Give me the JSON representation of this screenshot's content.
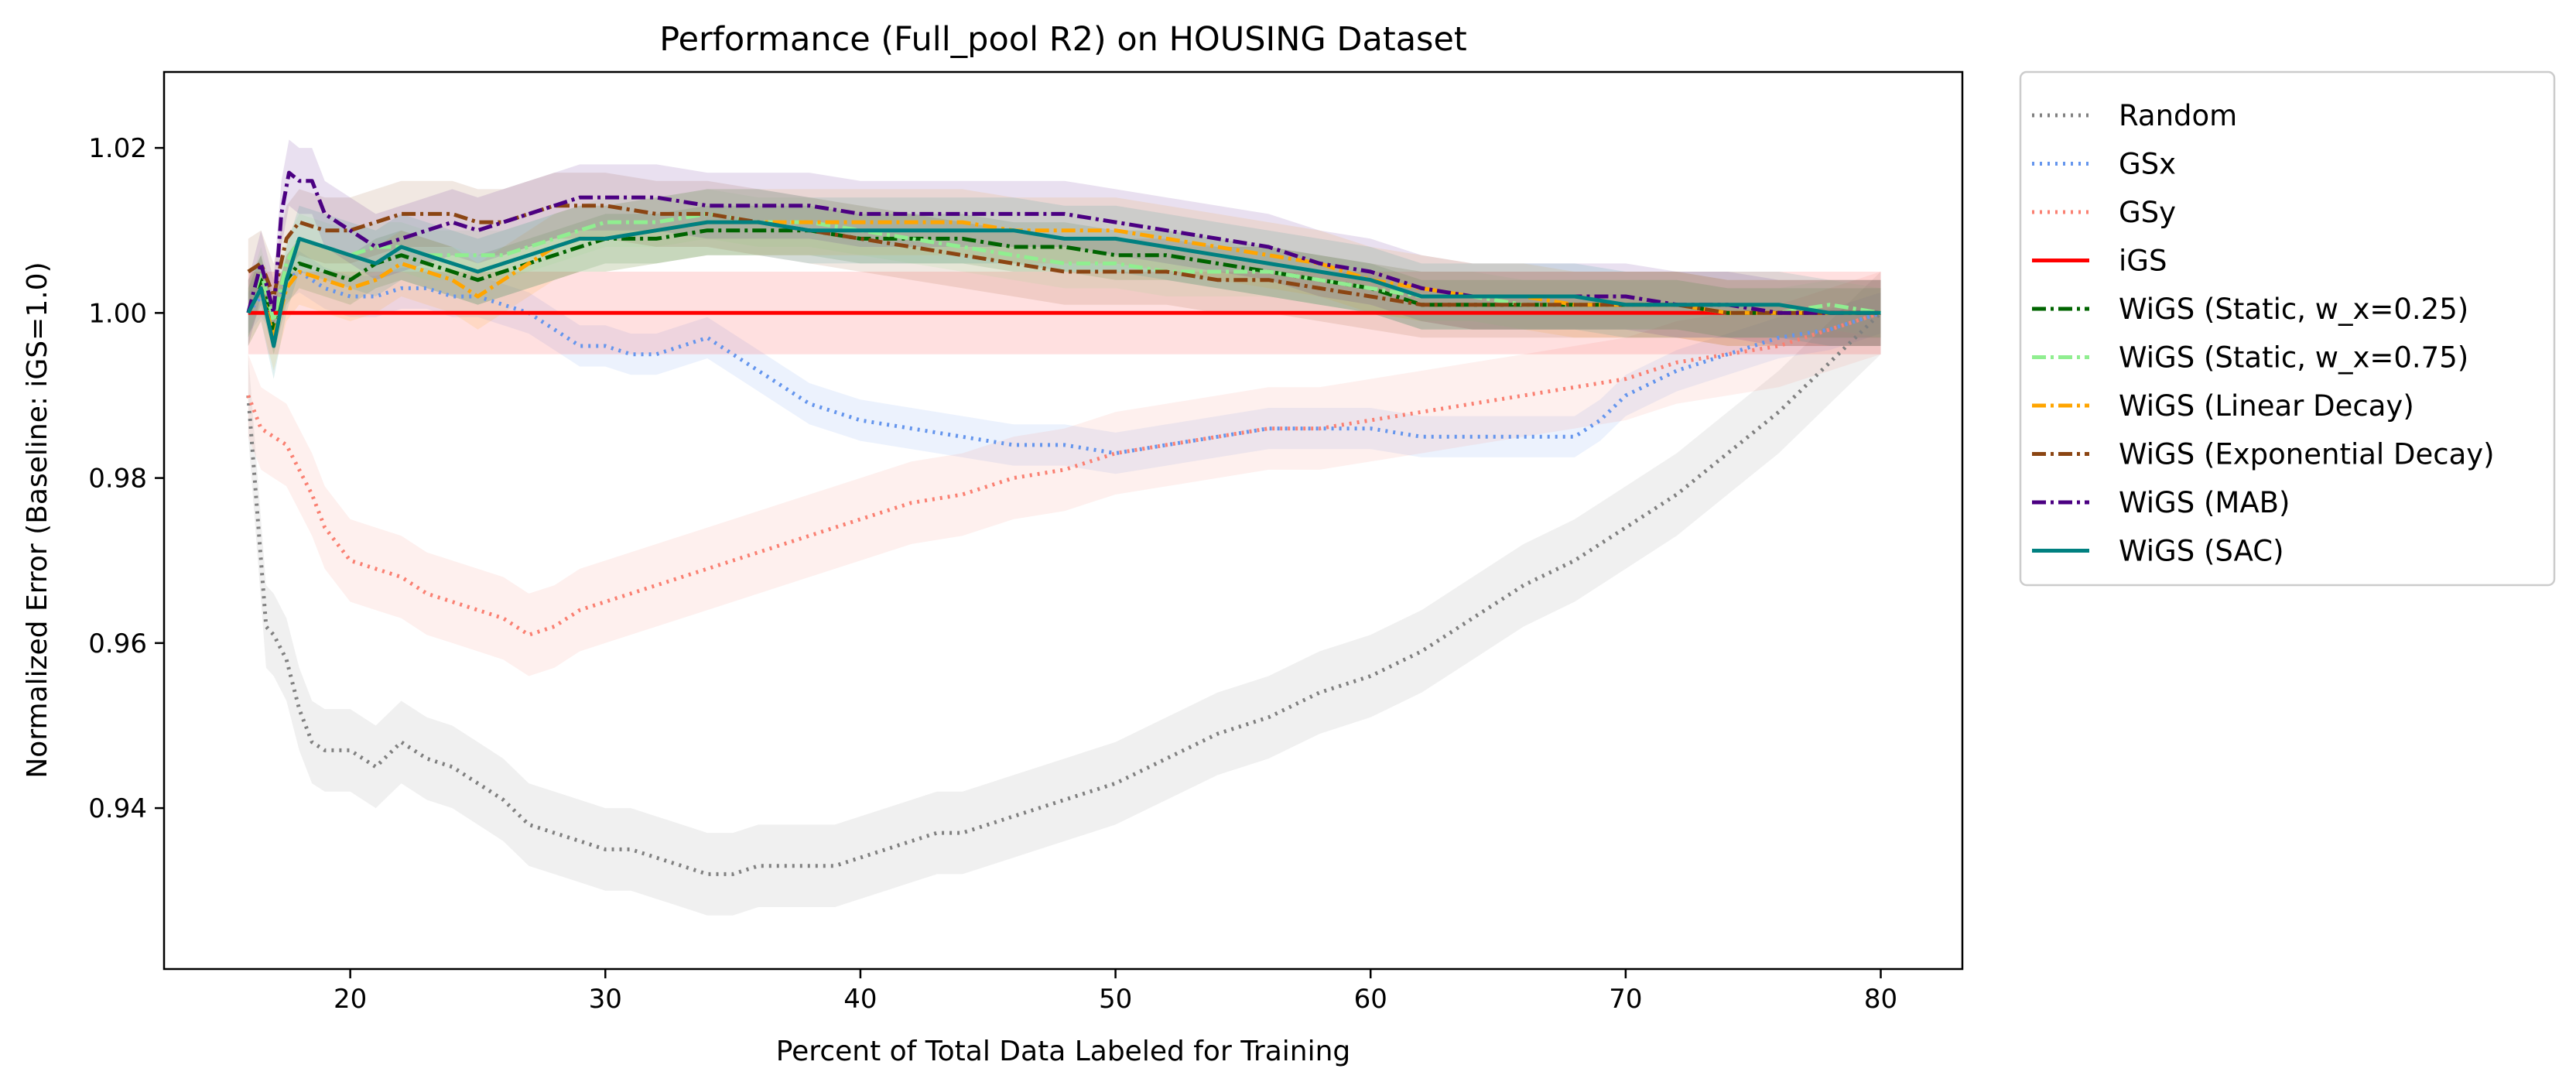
{
  "chart_data": {
    "type": "line",
    "title": "Performance (Full_pool R2) on HOUSING Dataset",
    "xlabel": "Percent of Total Data Labeled for Training",
    "ylabel": "Normalized Error (Baseline: iGS=1.0)",
    "xlim": [
      12.7,
      83.2
    ],
    "ylim": [
      0.9205,
      1.0292
    ],
    "xticks": [
      20,
      30,
      40,
      50,
      60,
      70,
      80
    ],
    "yticks": [
      0.94,
      0.96,
      0.98,
      1.0,
      1.02
    ],
    "ytick_labels": [
      "0.94",
      "0.96",
      "0.98",
      "1.00",
      "1.02"
    ],
    "grid": false,
    "legend_position": "outside-right",
    "series": [
      {
        "name": "Random",
        "color": "#808080",
        "style": "dotted",
        "band": 0.005,
        "x": [
          16,
          16.3,
          16.7,
          17,
          17.5,
          18,
          18.5,
          19,
          20,
          21,
          22,
          23,
          24,
          25,
          26,
          27,
          28,
          29,
          30,
          31,
          32,
          33,
          34,
          35,
          36,
          37,
          38,
          39,
          40,
          41,
          42,
          43,
          44,
          45,
          46,
          47,
          48,
          49,
          50,
          52,
          54,
          56,
          58,
          60,
          62,
          64,
          66,
          68,
          70,
          72,
          74,
          76,
          78,
          80
        ],
        "y": [
          0.99,
          0.978,
          0.962,
          0.961,
          0.958,
          0.952,
          0.948,
          0.947,
          0.947,
          0.945,
          0.948,
          0.946,
          0.945,
          0.943,
          0.941,
          0.938,
          0.937,
          0.936,
          0.935,
          0.935,
          0.934,
          0.933,
          0.932,
          0.932,
          0.933,
          0.933,
          0.933,
          0.933,
          0.934,
          0.935,
          0.936,
          0.937,
          0.937,
          0.938,
          0.939,
          0.94,
          0.941,
          0.942,
          0.943,
          0.946,
          0.949,
          0.951,
          0.954,
          0.956,
          0.959,
          0.963,
          0.967,
          0.97,
          0.974,
          0.978,
          0.983,
          0.988,
          0.994,
          1.0
        ]
      },
      {
        "name": "GSx",
        "color": "#6495ED",
        "style": "dotted",
        "band": 0.0025,
        "x": [
          16,
          16.5,
          17,
          17.5,
          18,
          19,
          20,
          21,
          22,
          23,
          24,
          25,
          26,
          27,
          28,
          29,
          30,
          31,
          32,
          33,
          34,
          35,
          36,
          37,
          38,
          39,
          40,
          42,
          44,
          46,
          48,
          50,
          52,
          54,
          56,
          58,
          60,
          62,
          64,
          66,
          68,
          69,
          70,
          72,
          74,
          76,
          78,
          80
        ],
        "y": [
          1.0,
          1.002,
          1.0,
          1.004,
          1.005,
          1.003,
          1.002,
          1.002,
          1.003,
          1.003,
          1.002,
          1.002,
          1.001,
          1.0,
          0.998,
          0.996,
          0.996,
          0.995,
          0.995,
          0.996,
          0.997,
          0.995,
          0.993,
          0.991,
          0.989,
          0.988,
          0.987,
          0.986,
          0.985,
          0.984,
          0.984,
          0.983,
          0.984,
          0.985,
          0.986,
          0.986,
          0.986,
          0.985,
          0.985,
          0.985,
          0.985,
          0.987,
          0.99,
          0.993,
          0.995,
          0.997,
          0.998,
          1.0
        ]
      },
      {
        "name": "GSy",
        "color": "#FA8072",
        "style": "dotted",
        "band": 0.005,
        "x": [
          16,
          16.5,
          17,
          17.5,
          18,
          18.5,
          19,
          20,
          21,
          22,
          23,
          24,
          25,
          26,
          27,
          28,
          29,
          30,
          32,
          34,
          36,
          38,
          40,
          42,
          44,
          46,
          48,
          50,
          52,
          54,
          56,
          58,
          60,
          62,
          64,
          66,
          68,
          70,
          72,
          74,
          76,
          78,
          80
        ],
        "y": [
          0.99,
          0.986,
          0.985,
          0.984,
          0.981,
          0.978,
          0.974,
          0.97,
          0.969,
          0.968,
          0.966,
          0.965,
          0.964,
          0.963,
          0.961,
          0.962,
          0.964,
          0.965,
          0.967,
          0.969,
          0.971,
          0.973,
          0.975,
          0.977,
          0.978,
          0.98,
          0.981,
          0.983,
          0.984,
          0.985,
          0.986,
          0.986,
          0.987,
          0.988,
          0.989,
          0.99,
          0.991,
          0.992,
          0.994,
          0.995,
          0.996,
          0.998,
          1.0
        ]
      },
      {
        "name": "iGS",
        "color": "#FF0000",
        "style": "solid",
        "band": 0.005,
        "x": [
          16,
          80
        ],
        "y": [
          1.0,
          1.0
        ]
      },
      {
        "name": "WiGS (Static, w_x=0.25)",
        "color": "#006400",
        "style": "dashdot",
        "band": 0.003,
        "x": [
          16,
          16.5,
          17,
          17.5,
          18,
          19,
          20,
          21,
          22,
          23,
          24,
          25,
          26,
          27,
          28,
          29,
          30,
          32,
          34,
          36,
          38,
          40,
          42,
          44,
          46,
          48,
          50,
          52,
          54,
          56,
          58,
          60,
          61,
          62,
          64,
          66,
          68,
          70,
          72,
          74,
          76,
          78,
          80
        ],
        "y": [
          1.0,
          1.004,
          0.998,
          1.004,
          1.006,
          1.005,
          1.004,
          1.006,
          1.007,
          1.006,
          1.005,
          1.004,
          1.005,
          1.006,
          1.007,
          1.008,
          1.009,
          1.009,
          1.01,
          1.01,
          1.01,
          1.009,
          1.009,
          1.009,
          1.008,
          1.008,
          1.007,
          1.007,
          1.006,
          1.005,
          1.004,
          1.003,
          1.002,
          1.001,
          1.001,
          1.001,
          1.001,
          1.001,
          1.001,
          1.0,
          1.0,
          1.0,
          1.0
        ]
      },
      {
        "name": "WiGS (Static, w_x=0.75)",
        "color": "#90EE90",
        "style": "dashdot",
        "band": 0.003,
        "x": [
          16,
          16.5,
          17,
          17.5,
          18,
          19,
          20,
          21,
          22,
          23,
          24,
          25,
          26,
          27,
          28,
          29,
          30,
          32,
          34,
          36,
          38,
          40,
          42,
          44,
          46,
          48,
          50,
          52,
          54,
          56,
          58,
          60,
          62,
          64,
          66,
          68,
          70,
          72,
          74,
          76,
          78,
          80
        ],
        "y": [
          1.0,
          1.005,
          0.999,
          1.006,
          1.009,
          1.008,
          1.007,
          1.008,
          1.008,
          1.007,
          1.007,
          1.007,
          1.007,
          1.008,
          1.009,
          1.01,
          1.011,
          1.011,
          1.012,
          1.011,
          1.011,
          1.01,
          1.009,
          1.008,
          1.007,
          1.006,
          1.006,
          1.005,
          1.005,
          1.005,
          1.004,
          1.003,
          1.002,
          1.002,
          1.001,
          1.001,
          1.001,
          1.001,
          1.0,
          1.0,
          1.001,
          1.0
        ]
      },
      {
        "name": "WiGS (Linear Decay)",
        "color": "#FFA500",
        "style": "dashdot",
        "band": 0.004,
        "x": [
          16,
          16.5,
          17,
          17.5,
          18,
          19,
          20,
          21,
          22,
          23,
          24,
          25,
          26,
          27,
          28,
          29,
          30,
          32,
          34,
          36,
          38,
          40,
          42,
          44,
          46,
          48,
          50,
          52,
          54,
          56,
          58,
          60,
          62,
          64,
          66,
          68,
          70,
          72,
          74,
          76,
          78,
          80
        ],
        "y": [
          1.0,
          1.003,
          0.997,
          1.003,
          1.005,
          1.004,
          1.003,
          1.004,
          1.006,
          1.005,
          1.004,
          1.002,
          1.004,
          1.006,
          1.008,
          1.009,
          1.009,
          1.01,
          1.011,
          1.011,
          1.011,
          1.011,
          1.011,
          1.011,
          1.01,
          1.01,
          1.01,
          1.009,
          1.008,
          1.007,
          1.006,
          1.004,
          1.003,
          1.002,
          1.002,
          1.001,
          1.001,
          1.001,
          1.0,
          1.0,
          1.0,
          1.0
        ]
      },
      {
        "name": "WiGS (Exponential Decay)",
        "color": "#8B4513",
        "style": "dashdot",
        "band": 0.004,
        "x": [
          16,
          16.5,
          17,
          17.5,
          18,
          19,
          20,
          21,
          22,
          23,
          24,
          25,
          26,
          27,
          28,
          29,
          30,
          32,
          34,
          36,
          38,
          40,
          42,
          44,
          46,
          48,
          50,
          52,
          54,
          56,
          58,
          60,
          62,
          64,
          66,
          68,
          70,
          72,
          74,
          76,
          78,
          80
        ],
        "y": [
          1.005,
          1.006,
          1.002,
          1.009,
          1.011,
          1.01,
          1.01,
          1.011,
          1.012,
          1.012,
          1.012,
          1.011,
          1.011,
          1.012,
          1.013,
          1.013,
          1.013,
          1.012,
          1.012,
          1.011,
          1.01,
          1.009,
          1.008,
          1.007,
          1.006,
          1.005,
          1.005,
          1.005,
          1.004,
          1.004,
          1.003,
          1.002,
          1.001,
          1.001,
          1.001,
          1.001,
          1.001,
          1.001,
          1.0,
          1.0,
          1.0,
          1.0
        ]
      },
      {
        "name": "WiGS (MAB)",
        "color": "#4B0082",
        "style": "dashdot",
        "band": 0.004,
        "x": [
          16,
          16.5,
          17,
          17.3,
          17.6,
          18,
          18.5,
          19,
          20,
          21,
          22,
          23,
          24,
          25,
          26,
          27,
          28,
          29,
          30,
          32,
          34,
          36,
          38,
          40,
          42,
          44,
          46,
          48,
          50,
          52,
          54,
          56,
          58,
          60,
          62,
          64,
          66,
          68,
          70,
          72,
          74,
          76,
          78,
          80
        ],
        "y": [
          1.0,
          1.006,
          1.0,
          1.012,
          1.017,
          1.016,
          1.016,
          1.012,
          1.01,
          1.008,
          1.009,
          1.01,
          1.011,
          1.01,
          1.011,
          1.012,
          1.013,
          1.014,
          1.014,
          1.014,
          1.013,
          1.013,
          1.013,
          1.012,
          1.012,
          1.012,
          1.012,
          1.012,
          1.011,
          1.01,
          1.009,
          1.008,
          1.006,
          1.005,
          1.003,
          1.002,
          1.002,
          1.002,
          1.002,
          1.001,
          1.001,
          1.0,
          1.0,
          1.0
        ]
      },
      {
        "name": "WiGS (SAC)",
        "color": "#008080",
        "style": "solid",
        "band": 0.004,
        "x": [
          16,
          16.5,
          17,
          17.5,
          18,
          19,
          20,
          21,
          22,
          23,
          24,
          25,
          26,
          27,
          28,
          29,
          30,
          32,
          34,
          36,
          38,
          40,
          42,
          44,
          46,
          48,
          50,
          52,
          54,
          56,
          58,
          60,
          61,
          62,
          64,
          66,
          68,
          70,
          72,
          74,
          76,
          78,
          80
        ],
        "y": [
          1.0,
          1.003,
          0.996,
          1.004,
          1.009,
          1.008,
          1.007,
          1.006,
          1.008,
          1.007,
          1.006,
          1.005,
          1.006,
          1.007,
          1.008,
          1.009,
          1.009,
          1.01,
          1.011,
          1.011,
          1.01,
          1.01,
          1.01,
          1.01,
          1.01,
          1.009,
          1.009,
          1.008,
          1.007,
          1.006,
          1.005,
          1.004,
          1.003,
          1.002,
          1.002,
          1.002,
          1.002,
          1.001,
          1.001,
          1.001,
          1.001,
          1.0,
          1.0
        ]
      }
    ]
  }
}
